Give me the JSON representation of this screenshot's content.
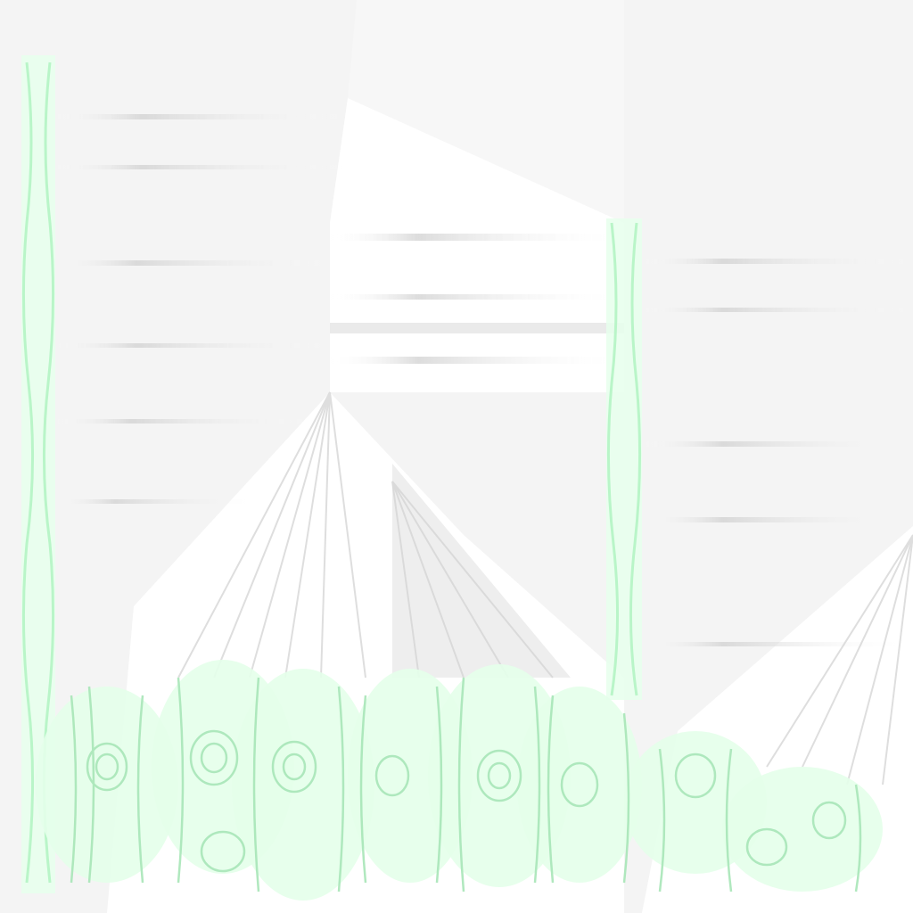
{
  "image": {
    "kind": "abstract-texture",
    "palette": {
      "background": "#f4f4f4",
      "white": "#ffffff",
      "streak_grey": "#d2d2d2",
      "green_tint": "#dcffe6",
      "green_outline": "#b9f5c8",
      "swirl": "#a8e6b8"
    },
    "visible_text": []
  }
}
